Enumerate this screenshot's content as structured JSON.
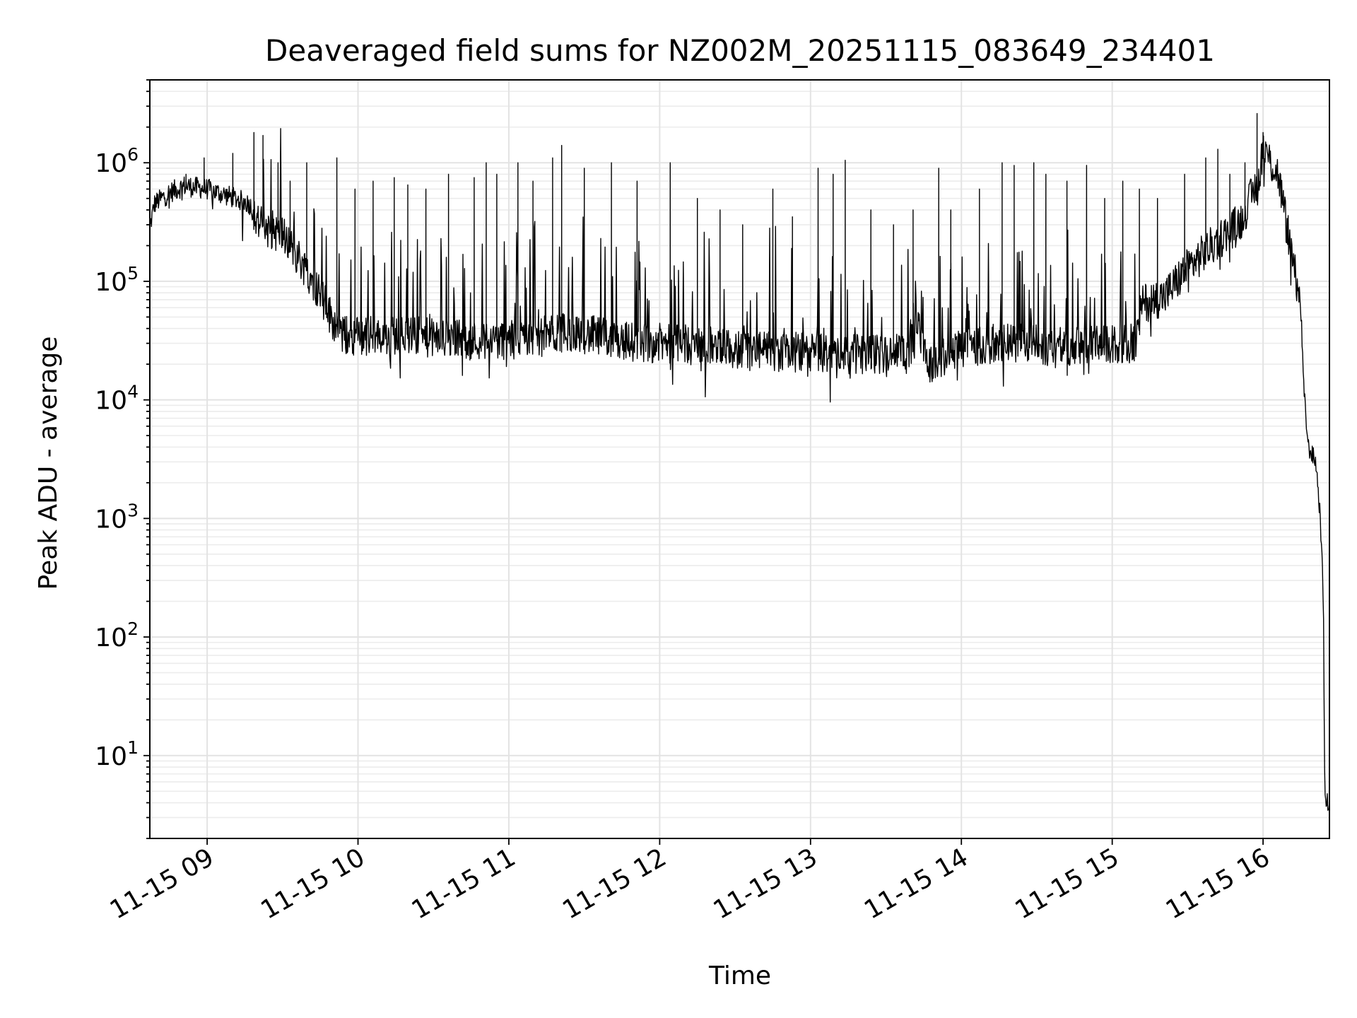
{
  "chart_data": {
    "type": "line",
    "title": "Deaveraged field sums for NZ002M_20251115_083649_234401",
    "xlabel": "Time",
    "ylabel": "Peak ADU - average",
    "yscale": "log",
    "ylim": [
      2,
      5000000
    ],
    "x_unit": "hour of day",
    "xlim": [
      8.62,
      16.44
    ],
    "x_ticks": [
      {
        "value": 9,
        "label": "11-15 09"
      },
      {
        "value": 10,
        "label": "11-15 10"
      },
      {
        "value": 11,
        "label": "11-15 11"
      },
      {
        "value": 12,
        "label": "11-15 12"
      },
      {
        "value": 13,
        "label": "11-15 13"
      },
      {
        "value": 14,
        "label": "11-15 14"
      },
      {
        "value": 15,
        "label": "11-15 15"
      },
      {
        "value": 16,
        "label": "11-15 16"
      }
    ],
    "y_ticks": [
      {
        "value": 10,
        "base": "10",
        "exp": "1"
      },
      {
        "value": 100,
        "base": "10",
        "exp": "2"
      },
      {
        "value": 1000,
        "base": "10",
        "exp": "3"
      },
      {
        "value": 10000,
        "base": "10",
        "exp": "4"
      },
      {
        "value": 100000,
        "base": "10",
        "exp": "5"
      },
      {
        "value": 1000000,
        "base": "10",
        "exp": "6"
      }
    ],
    "grid": true,
    "series": [
      {
        "name": "Deaveraged field sums",
        "color": "#000000",
        "baseline": [
          [
            8.62,
            280000
          ],
          [
            8.65,
            450000
          ],
          [
            8.75,
            560000
          ],
          [
            8.85,
            640000
          ],
          [
            9.0,
            600000
          ],
          [
            9.15,
            520000
          ],
          [
            9.28,
            450000
          ],
          [
            9.35,
            300000
          ],
          [
            9.5,
            250000
          ],
          [
            9.65,
            130000
          ],
          [
            9.75,
            80000
          ],
          [
            9.82,
            50000
          ],
          [
            9.9,
            35000
          ],
          [
            10.0,
            35000
          ],
          [
            10.3,
            35000
          ],
          [
            10.6,
            32000
          ],
          [
            11.0,
            32000
          ],
          [
            11.2,
            34000
          ],
          [
            11.4,
            38000
          ],
          [
            11.6,
            34000
          ],
          [
            11.8,
            31000
          ],
          [
            12.2,
            29000
          ],
          [
            12.6,
            26000
          ],
          [
            13.0,
            25000
          ],
          [
            13.4,
            24000
          ],
          [
            13.65,
            26000
          ],
          [
            13.72,
            40000
          ],
          [
            13.78,
            20000
          ],
          [
            13.85,
            22000
          ],
          [
            14.0,
            28000
          ],
          [
            14.3,
            30000
          ],
          [
            14.7,
            28000
          ],
          [
            15.0,
            29000
          ],
          [
            15.15,
            30000
          ],
          [
            15.2,
            65000
          ],
          [
            15.35,
            75000
          ],
          [
            15.5,
            130000
          ],
          [
            15.7,
            220000
          ],
          [
            15.85,
            320000
          ],
          [
            15.97,
            700000
          ],
          [
            16.0,
            1400000
          ],
          [
            16.05,
            1000000
          ],
          [
            16.1,
            800000
          ],
          [
            16.18,
            200000
          ],
          [
            16.25,
            60000
          ],
          [
            16.27,
            12000
          ],
          [
            16.3,
            4000
          ],
          [
            16.35,
            3000
          ],
          [
            16.38,
            1000
          ],
          [
            16.4,
            200
          ],
          [
            16.41,
            4
          ],
          [
            16.44,
            4
          ]
        ],
        "spikes": [
          [
            8.86,
            800000
          ],
          [
            8.98,
            1100000
          ],
          [
            9.17,
            1200000
          ],
          [
            9.31,
            1800000
          ],
          [
            9.37,
            1700000
          ],
          [
            9.47,
            1000000
          ],
          [
            9.55,
            700000
          ],
          [
            9.66,
            1000000
          ],
          [
            9.86,
            1100000
          ],
          [
            9.98,
            600000
          ],
          [
            10.1,
            700000
          ],
          [
            10.24,
            750000
          ],
          [
            10.33,
            650000
          ],
          [
            10.45,
            600000
          ],
          [
            10.6,
            800000
          ],
          [
            10.77,
            750000
          ],
          [
            10.85,
            1000000
          ],
          [
            10.92,
            800000
          ],
          [
            11.06,
            1000000
          ],
          [
            11.16,
            700000
          ],
          [
            11.29,
            1100000
          ],
          [
            11.35,
            1400000
          ],
          [
            11.5,
            900000
          ],
          [
            11.68,
            1000000
          ],
          [
            11.85,
            700000
          ],
          [
            12.07,
            1000000
          ],
          [
            12.25,
            500000
          ],
          [
            12.4,
            400000
          ],
          [
            12.55,
            300000
          ],
          [
            12.75,
            600000
          ],
          [
            12.88,
            350000
          ],
          [
            13.05,
            900000
          ],
          [
            13.15,
            800000
          ],
          [
            13.23,
            1050000
          ],
          [
            13.4,
            400000
          ],
          [
            13.55,
            300000
          ],
          [
            13.68,
            400000
          ],
          [
            13.85,
            900000
          ],
          [
            13.93,
            400000
          ],
          [
            14.12,
            600000
          ],
          [
            14.27,
            1000000
          ],
          [
            14.35,
            950000
          ],
          [
            14.48,
            1000000
          ],
          [
            14.56,
            800000
          ],
          [
            14.7,
            700000
          ],
          [
            14.83,
            950000
          ],
          [
            14.95,
            500000
          ],
          [
            15.07,
            700000
          ],
          [
            15.18,
            600000
          ],
          [
            15.3,
            500000
          ],
          [
            15.48,
            800000
          ],
          [
            15.62,
            1100000
          ],
          [
            15.7,
            1300000
          ],
          [
            15.78,
            800000
          ],
          [
            15.88,
            1000000
          ],
          [
            15.96,
            2600000
          ],
          [
            16.0,
            1800000
          ]
        ]
      }
    ]
  }
}
